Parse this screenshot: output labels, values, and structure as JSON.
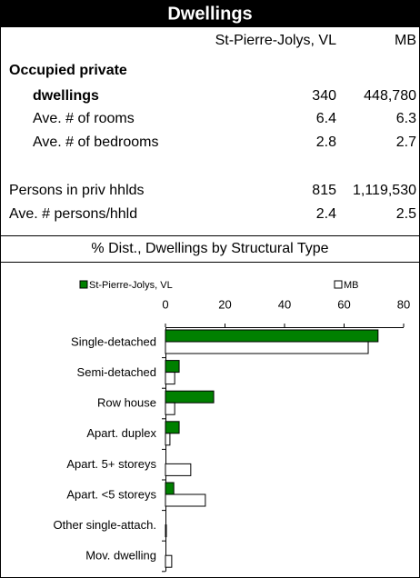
{
  "header": {
    "title": "Dwellings",
    "columns": [
      "St-Pierre-Jolys, VL",
      "MB"
    ]
  },
  "table": {
    "rows": [
      {
        "label": "Occupied private"
      },
      {
        "label": "dwellings",
        "values": [
          "340",
          "448,780"
        ]
      },
      {
        "label": "Ave. # of rooms",
        "values": [
          "6.4",
          "6.3"
        ]
      },
      {
        "label": "Ave. # of bedrooms",
        "values": [
          "2.8",
          "2.7"
        ]
      },
      {
        "label": "Persons in priv hhlds",
        "values": [
          "815",
          "1,119,530"
        ]
      },
      {
        "label": "Ave. # persons/hhld",
        "values": [
          "2.4",
          "2.5"
        ]
      }
    ]
  },
  "chart_data": {
    "type": "hbar",
    "title": "% Dist., Dwellings by Structural Type",
    "categories": [
      "Single-detached",
      "Semi-detached",
      "Row house",
      "Apart. duplex",
      "Apart. 5+ storeys",
      "Apart. <5 storeys",
      "Other single-attach.",
      "Mov. dwelling"
    ],
    "series": [
      {
        "name": "St-Pierre-Jolys, VL",
        "color": "#008000",
        "values": [
          71.4,
          4.6,
          16.2,
          4.6,
          0,
          2.8,
          0,
          0
        ]
      },
      {
        "name": "MB",
        "color": "#ffffff",
        "values": [
          68.1,
          3.1,
          3.1,
          1.5,
          8.5,
          13.4,
          0.3,
          2.1
        ]
      }
    ],
    "xlim": [
      0,
      80
    ],
    "xticks": [
      0,
      20,
      40,
      60,
      80
    ]
  }
}
